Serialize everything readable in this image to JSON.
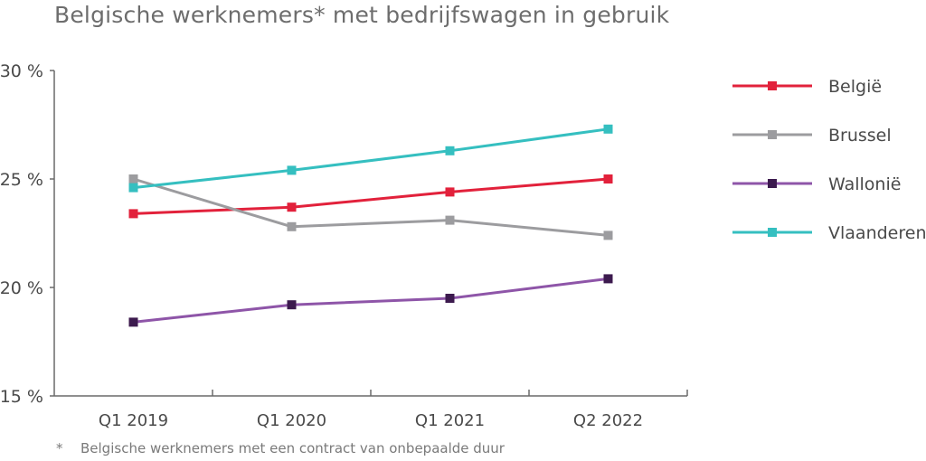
{
  "title": "Belgische werknemers* met bedrijfswagen in gebruik",
  "footnote": {
    "marker": "*",
    "text": "Belgische werknemers met een contract van onbepaalde duur"
  },
  "chart_data": {
    "type": "line",
    "categories": [
      "Q1 2019",
      "Q1 2020",
      "Q1 2021",
      "Q2 2022"
    ],
    "ylim": [
      15,
      30
    ],
    "yticks": [
      15,
      20,
      25,
      30
    ],
    "ytick_labels": [
      "15 %",
      "20 %",
      "25 %",
      "30 %"
    ],
    "grid": false,
    "legend_position": "right",
    "series": [
      {
        "name": "België",
        "values": [
          23.4,
          23.7,
          24.4,
          25.0
        ],
        "color": "#e2213b",
        "marker_color": "#e2213b"
      },
      {
        "name": "Brussel",
        "values": [
          25.0,
          22.8,
          23.1,
          22.4
        ],
        "color": "#9c9c9f",
        "marker_color": "#9c9c9f"
      },
      {
        "name": "Wallonië",
        "values": [
          18.4,
          19.2,
          19.5,
          20.4
        ],
        "color": "#8e55a8",
        "marker_color": "#3c1a4e"
      },
      {
        "name": "Vlaanderen",
        "values": [
          24.6,
          25.4,
          26.3,
          27.3
        ],
        "color": "#35bfc0",
        "marker_color": "#35bfc0"
      }
    ]
  }
}
